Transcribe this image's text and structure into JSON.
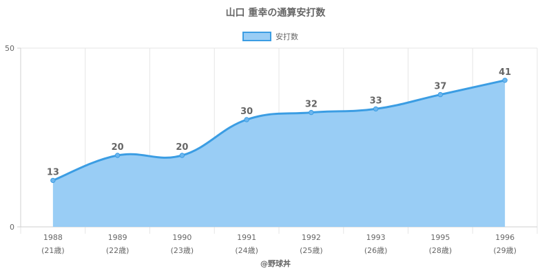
{
  "chart_data": {
    "type": "area",
    "title": "山口 重幸の通算安打数",
    "categories": [
      "1988",
      "1989",
      "1990",
      "1991",
      "1992",
      "1993",
      "1995",
      "1996"
    ],
    "sub_labels": [
      "(21歳)",
      "(22歳)",
      "(23歳)",
      "(24歳)",
      "(25歳)",
      "(26歳)",
      "(28歳)",
      "(29歳)"
    ],
    "series": [
      {
        "name": "安打数",
        "values": [
          13,
          20,
          20,
          30,
          32,
          33,
          37,
          41
        ]
      }
    ],
    "y_ticks": [
      "0",
      "50"
    ],
    "ylim": [
      0,
      50
    ],
    "grid": true,
    "legend": "top",
    "credit": "@野球丼",
    "colors": {
      "line": "#3b9de3",
      "fill": "#99cdf5",
      "point": "#6cb6ef",
      "text": "#666666"
    }
  }
}
